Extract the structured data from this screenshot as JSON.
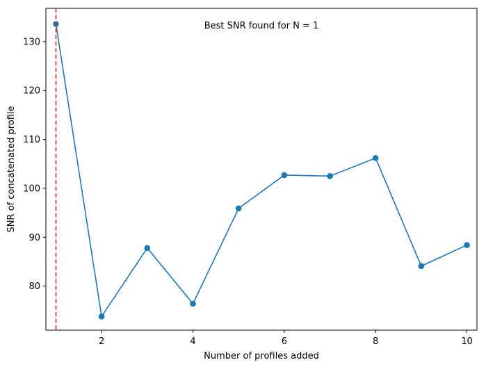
{
  "chart_data": {
    "type": "line",
    "xlabel": "Number of profiles added",
    "ylabel": "SNR of concatenated profile",
    "annotation": "Best SNR found for N = 1",
    "xlim": [
      0.78,
      10.22
    ],
    "ylim": [
      71.0,
      136.8
    ],
    "x_ticks": [
      2,
      4,
      6,
      8,
      10
    ],
    "y_ticks": [
      80,
      90,
      100,
      110,
      120,
      130
    ],
    "x": [
      1,
      2,
      3,
      4,
      5,
      6,
      7,
      8,
      9,
      10
    ],
    "series": [
      {
        "values": [
          133.6,
          73.8,
          87.8,
          76.4,
          95.9,
          102.7,
          102.5,
          106.2,
          84.1,
          88.4
        ],
        "color": "#1f77b4",
        "marker": "circle"
      }
    ],
    "vline": {
      "x": 1,
      "color": "#d62728",
      "style": "dashed"
    },
    "grid": false,
    "legend": "none"
  }
}
